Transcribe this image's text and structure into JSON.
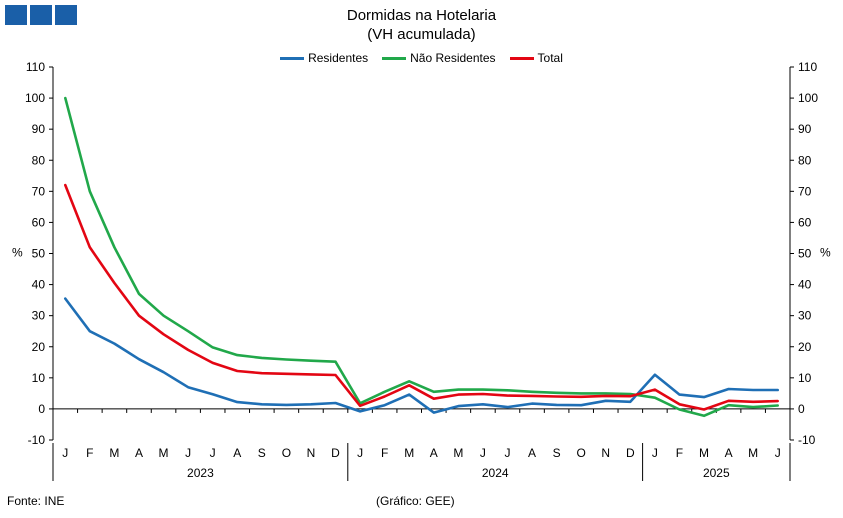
{
  "header": {
    "logo_colors": [
      "#1a5fa8",
      "#1a5fa8",
      "#1a5fa8"
    ],
    "title_line1": "Dormidas na Hotelaria",
    "title_line2": "(VH acumulada)"
  },
  "footer": {
    "source": "Fonte: INE",
    "credit": "(Gráfico: GEE)"
  },
  "chart_data": {
    "type": "line",
    "title": "Dormidas na Hotelaria (VH acumulada)",
    "ylabel_left": "%",
    "ylabel_right": "%",
    "ylim": [
      -10,
      110
    ],
    "yticks": [
      -10,
      0,
      10,
      20,
      30,
      40,
      50,
      60,
      70,
      80,
      90,
      100,
      110
    ],
    "grid": false,
    "legend_position": "top-center",
    "x": [
      "J",
      "F",
      "M",
      "A",
      "M",
      "J",
      "J",
      "A",
      "S",
      "O",
      "N",
      "D",
      "J",
      "F",
      "M",
      "A",
      "M",
      "J",
      "J",
      "A",
      "S",
      "O",
      "N",
      "D",
      "J",
      "F",
      "M",
      "A",
      "M",
      "J"
    ],
    "years": [
      {
        "label": "2023",
        "start": 0,
        "end": 11
      },
      {
        "label": "2024",
        "start": 12,
        "end": 23
      },
      {
        "label": "2025",
        "start": 24,
        "end": 29
      }
    ],
    "series": [
      {
        "name": "Residentes",
        "color": "#1f6fb5",
        "values": [
          35.5,
          25,
          21,
          16,
          11.8,
          7,
          4.7,
          2.2,
          1.5,
          1.3,
          1.5,
          1.9,
          -0.8,
          1.2,
          4.6,
          -1.2,
          0.9,
          1.5,
          0.6,
          1.7,
          1.3,
          1.2,
          2.6,
          2.3,
          11,
          4.6,
          3.8,
          6.4,
          6.1,
          6.1
        ]
      },
      {
        "name": "Não Residentes",
        "color": "#21a84a",
        "values": [
          100,
          70,
          52,
          37,
          30,
          25,
          19.8,
          17.3,
          16.4,
          15.9,
          15.5,
          15.2,
          1.8,
          5.5,
          8.9,
          5.5,
          6.2,
          6.2,
          6,
          5.5,
          5.2,
          5,
          5,
          4.8,
          3.6,
          -0.2,
          -2.2,
          1.2,
          0.6,
          1.1
        ]
      },
      {
        "name": "Total",
        "color": "#e30613",
        "values": [
          72,
          52,
          40.5,
          30,
          24,
          19,
          14.8,
          12.2,
          11.5,
          11.3,
          11.1,
          10.9,
          1,
          4,
          7.6,
          3.3,
          4.6,
          4.8,
          4.3,
          4.2,
          4,
          3.9,
          4.2,
          4.1,
          6.2,
          1.5,
          -0.2,
          2.6,
          2.3,
          2.5
        ]
      }
    ]
  }
}
